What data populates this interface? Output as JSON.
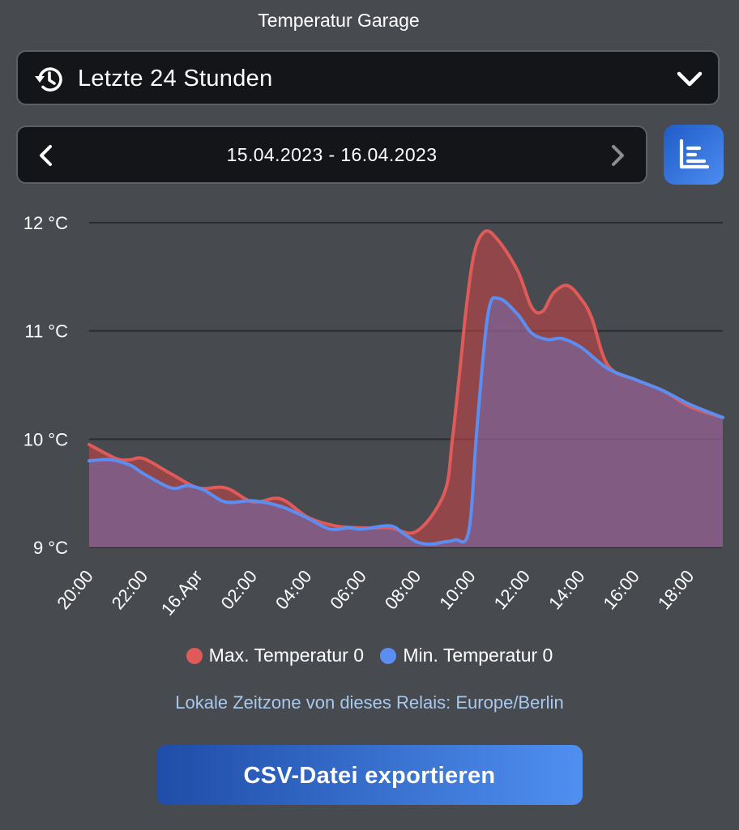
{
  "page": {
    "title": "Temperatur Garage"
  },
  "range_select": {
    "icon": "history-icon",
    "label": "Letzte 24 Stunden",
    "dropdown_icon": "chevron-down-icon"
  },
  "date_nav": {
    "prev_icon": "chevron-left-icon",
    "range": "15.04.2023 - 16.04.2023",
    "next_icon": "chevron-right-icon"
  },
  "chart_toggle": {
    "icon": "chart-icon"
  },
  "colors": {
    "max_series": "#e05a5a",
    "min_series": "#5b8ef0",
    "accent": "#3f7fe6",
    "timezone_text": "#a9c8ee"
  },
  "chart_data": {
    "type": "area",
    "title": "",
    "xlabel": "",
    "ylabel": "",
    "ylim": [
      9,
      12
    ],
    "yticks": [
      "12 °C",
      "11 °C",
      "10 °C",
      "9 °C"
    ],
    "ytick_values": [
      12,
      11,
      10,
      9
    ],
    "xticks": [
      "20:00",
      "22:00",
      "16.Apr",
      "02:00",
      "04:00",
      "06:00",
      "08:00",
      "10:00",
      "12:00",
      "14:00",
      "16:00",
      "18:00"
    ],
    "xtick_hours": [
      0,
      2,
      4,
      6,
      8,
      10,
      12,
      14,
      16,
      18,
      20,
      22
    ],
    "xlim_hours": [
      0,
      23.2
    ],
    "grid": true,
    "legend_position": "bottom",
    "series": [
      {
        "name": "Max. Temperatur 0",
        "x": [
          0,
          1,
          1.5,
          2,
          3,
          4,
          5,
          6,
          7,
          8,
          9,
          10,
          11,
          12,
          13,
          13.3,
          13.6,
          13.8,
          14.1,
          14.5,
          15,
          15.7,
          16.2,
          16.6,
          17,
          17.5,
          18,
          18.4,
          19,
          20,
          21,
          22,
          23.2
        ],
        "values": [
          9.95,
          9.82,
          9.81,
          9.82,
          9.68,
          9.55,
          9.55,
          9.42,
          9.45,
          9.28,
          9.2,
          9.18,
          9.18,
          9.15,
          9.5,
          10.0,
          10.7,
          11.2,
          11.72,
          11.92,
          11.83,
          11.55,
          11.22,
          11.18,
          11.35,
          11.42,
          11.3,
          11.12,
          10.68,
          10.55,
          10.45,
          10.3,
          10.2
        ]
      },
      {
        "name": "Min. Temperatur 0",
        "x": [
          0,
          0.8,
          1.5,
          2,
          3,
          3.6,
          4.2,
          5,
          6,
          7,
          8,
          8.8,
          9.5,
          10,
          11,
          11.5,
          12,
          12.5,
          13,
          13.4,
          13.9,
          14.2,
          14.6,
          15,
          15.7,
          16.2,
          16.8,
          17.3,
          18,
          19,
          20,
          21,
          22,
          23.2
        ],
        "values": [
          9.8,
          9.81,
          9.76,
          9.68,
          9.55,
          9.57,
          9.53,
          9.42,
          9.43,
          9.38,
          9.27,
          9.17,
          9.18,
          9.17,
          9.2,
          9.13,
          9.05,
          9.03,
          9.05,
          9.07,
          9.15,
          10.1,
          11.15,
          11.3,
          11.15,
          10.98,
          10.92,
          10.93,
          10.85,
          10.65,
          10.55,
          10.45,
          10.32,
          10.2
        ]
      }
    ]
  },
  "legend": {
    "max_label": "Max. Temperatur 0",
    "min_label": "Min. Temperatur 0"
  },
  "timezone_note": "Lokale Zeitzone von dieses Relais: Europe/Berlin",
  "export_button": {
    "label": "CSV-Datei exportieren"
  }
}
